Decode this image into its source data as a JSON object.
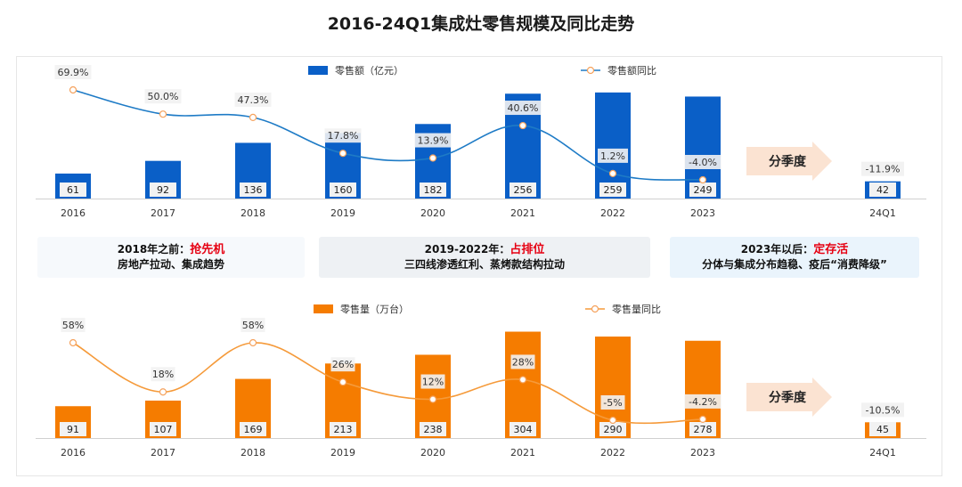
{
  "title": "2016-24Q1集成灶零售规模及同比走势",
  "arrow_label": "分季度",
  "bands": [
    {
      "prefix": "2018年之前：",
      "highlight": "抢先机",
      "line2": "房地产拉动、集成趋势"
    },
    {
      "prefix": "2019-2022年：",
      "highlight": "占排位",
      "line2": "三四线渗透红利、蒸烤款结构拉动"
    },
    {
      "prefix": "2023年以后：",
      "highlight": "定存活",
      "line2": "分体与集成分布趋稳、疫后“消费降级”"
    }
  ],
  "colors": {
    "bar_top": "#0a5fc7",
    "line_top": "#1e7bc6",
    "bar_bottom": "#f57c00",
    "line_bottom": "#f59a3a",
    "label_bg": "#f2f2f2",
    "arrow": "#fbe3d2"
  },
  "chart_data": [
    {
      "type": "bar",
      "categories": [
        "2016",
        "2017",
        "2018",
        "2019",
        "2020",
        "2021",
        "2022",
        "2023",
        "24Q1"
      ],
      "series": [
        {
          "name": "零售额（亿元）",
          "type": "bar",
          "values": [
            61,
            92,
            136,
            160,
            182,
            256,
            259,
            249,
            42
          ]
        },
        {
          "name": "零售额同比",
          "type": "line",
          "values": [
            69.9,
            50.0,
            47.3,
            17.8,
            13.9,
            40.6,
            1.2,
            -4.0,
            -11.9
          ],
          "labels": [
            "69.9%",
            "50.0%",
            "47.3%",
            "17.8%",
            "13.9%",
            "40.6%",
            "1.2%",
            "-4.0%",
            "-11.9%"
          ]
        }
      ],
      "legend": "top"
    },
    {
      "type": "bar",
      "categories": [
        "2016",
        "2017",
        "2018",
        "2019",
        "2020",
        "2021",
        "2022",
        "2023",
        "24Q1"
      ],
      "series": [
        {
          "name": "零售量（万台）",
          "type": "bar",
          "values": [
            91,
            107,
            169,
            213,
            238,
            304,
            290,
            278,
            45
          ]
        },
        {
          "name": "零售量同比",
          "type": "line",
          "values": [
            58,
            18,
            58,
            26,
            12,
            28,
            -5,
            -4.2,
            -10.5
          ],
          "labels": [
            "58%",
            "18%",
            "58%",
            "26%",
            "12%",
            "28%",
            "-5%",
            "-4.2%",
            "-10.5%"
          ]
        }
      ],
      "legend": "top"
    }
  ]
}
